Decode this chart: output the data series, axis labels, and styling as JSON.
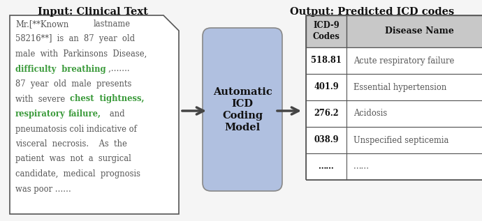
{
  "title_left": "Input: Clinical Text",
  "title_right": "Output: Predicted ICD codes",
  "bg_color": "#f5f5f5",
  "text_box_bg": "#ffffff",
  "model_box_color": "#b0c0e0",
  "model_box_edge": "#888888",
  "table_header_bg": "#c8c8c8",
  "table_row_bg": "#ffffff",
  "green_color": "#3a9a3a",
  "gray_text": "#555555",
  "black_text": "#111111",
  "border_color": "#555555",
  "box_label_lines": [
    "Automatic",
    "ICD",
    "Coding",
    "Model"
  ],
  "table_header": [
    "ICD-9\nCodes",
    "Disease Name"
  ],
  "table_rows": [
    [
      "518.81",
      "Acute respiratory failure"
    ],
    [
      "401.9",
      "Essential hypertension"
    ],
    [
      "276.2",
      "Acidosis"
    ],
    [
      "038.9",
      "Unspecified septicemia"
    ],
    [
      "……",
      "……"
    ]
  ]
}
